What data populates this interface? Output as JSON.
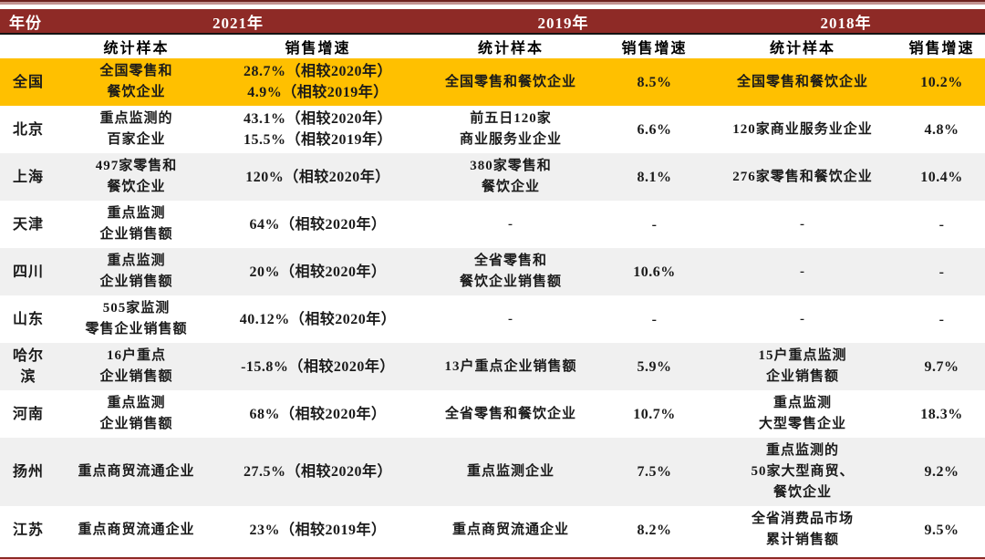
{
  "colors": {
    "header_red": "#8E2A26",
    "gold_highlight": "#FFC000",
    "stripe_gray": "#F0F0F0",
    "divider_black": "#141414",
    "top_line_dark": "#6E2320",
    "top_line_light": "#C29391",
    "header_text": "#FFFFFF",
    "body_text": "#1A1A1A"
  },
  "chart_data": {
    "type": "table",
    "corner_label": "年份",
    "year_groups": [
      "2021年",
      "2019年",
      "2018年"
    ],
    "subheaders": [
      "统计样本",
      "销售增速",
      "统计样本",
      "销售增速",
      "统计样本",
      "销售增速"
    ],
    "rows": [
      {
        "region": [
          "全国"
        ],
        "shade": "gold",
        "cells": [
          [
            "全国零售和",
            "餐饮企业"
          ],
          [
            "28.7%（相较2020年）",
            "4.9%（相较2019年）"
          ],
          [
            "全国零售和餐饮企业"
          ],
          [
            "8.5%"
          ],
          [
            "全国零售和餐饮企业"
          ],
          [
            "10.2%"
          ]
        ]
      },
      {
        "region": [
          "北京"
        ],
        "shade": "white",
        "cells": [
          [
            "重点监测的",
            "百家企业"
          ],
          [
            "43.1%（相较2020年）",
            "15.5%（相较2019年）"
          ],
          [
            "前五日120家",
            "商业服务业企业"
          ],
          [
            "6.6%"
          ],
          [
            "120家商业服务业企业"
          ],
          [
            "4.8%"
          ]
        ]
      },
      {
        "region": [
          "上海"
        ],
        "shade": "gray",
        "cells": [
          [
            "497家零售和",
            "餐饮企业"
          ],
          [
            "120%（相较2020年）"
          ],
          [
            "380家零售和",
            "餐饮企业"
          ],
          [
            "8.1%"
          ],
          [
            "276家零售和餐饮企业"
          ],
          [
            "10.4%"
          ]
        ]
      },
      {
        "region": [
          "天津"
        ],
        "shade": "white",
        "cells": [
          [
            "重点监测",
            "企业销售额"
          ],
          [
            "64%（相较2020年）"
          ],
          [
            "-"
          ],
          [
            "-"
          ],
          [
            "-"
          ],
          [
            "-"
          ]
        ]
      },
      {
        "region": [
          "四川"
        ],
        "shade": "gray",
        "cells": [
          [
            "重点监测",
            "企业销售额"
          ],
          [
            "20%（相较2020年）"
          ],
          [
            "全省零售和",
            "餐饮企业销售额"
          ],
          [
            "10.6%"
          ],
          [
            "-"
          ],
          [
            "-"
          ]
        ]
      },
      {
        "region": [
          "山东"
        ],
        "shade": "white",
        "cells": [
          [
            "505家监测",
            "零售企业销售额"
          ],
          [
            "40.12%（相较2020年）"
          ],
          [
            "-"
          ],
          [
            "-"
          ],
          [
            "-"
          ],
          [
            "-"
          ]
        ]
      },
      {
        "region": [
          "哈尔",
          "滨"
        ],
        "shade": "gray",
        "cells": [
          [
            "16户重点",
            "企业销售额"
          ],
          [
            "-15.8%（相较2020年）"
          ],
          [
            "13户重点企业销售额"
          ],
          [
            "5.9%"
          ],
          [
            "15户重点监测",
            "企业销售额"
          ],
          [
            "9.7%"
          ]
        ]
      },
      {
        "region": [
          "河南"
        ],
        "shade": "white",
        "cells": [
          [
            "重点监测",
            "企业销售额"
          ],
          [
            "68%（相较2020年）"
          ],
          [
            "全省零售和餐饮企业"
          ],
          [
            "10.7%"
          ],
          [
            "重点监测",
            "大型零售企业"
          ],
          [
            "18.3%"
          ]
        ]
      },
      {
        "region": [
          "扬州"
        ],
        "shade": "gray",
        "cells": [
          [
            "重点商贸流通企业"
          ],
          [
            "27.5%（相较2020年）"
          ],
          [
            "重点监测企业"
          ],
          [
            "7.5%"
          ],
          [
            "重点监测的",
            "50家大型商贸、",
            "餐饮企业"
          ],
          [
            "9.2%"
          ]
        ]
      },
      {
        "region": [
          "江苏"
        ],
        "shade": "white",
        "cells": [
          [
            "重点商贸流通企业"
          ],
          [
            "23%（相较2019年）"
          ],
          [
            "重点商贸流通企业"
          ],
          [
            "8.2%"
          ],
          [
            "全省消费品市场",
            "累计销售额"
          ],
          [
            "9.5%"
          ]
        ]
      }
    ]
  }
}
